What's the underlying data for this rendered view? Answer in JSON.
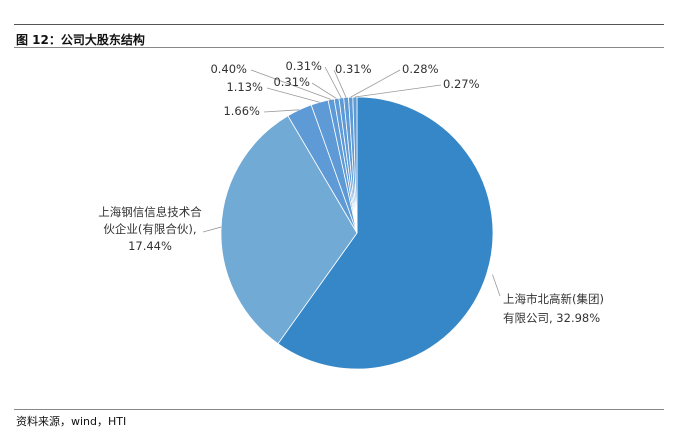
{
  "figure": {
    "title": "图 12：公司大股东结构",
    "source": "资料来源，wind，HTI"
  },
  "chart_data": {
    "type": "pie",
    "title": "",
    "slices": [
      {
        "label": "上海市北高新(集团)有限公司",
        "value": 32.98,
        "label_text": "32.98%",
        "color": "#3587c7"
      },
      {
        "label": "上海钢信信息技术合伙企业(有限合伙)",
        "value": 17.44,
        "label_text": "17.44%",
        "color": "#72aad6"
      },
      {
        "label": "",
        "value": 1.66,
        "label_text": "1.66%",
        "color": "#5d9ad6"
      },
      {
        "label": "",
        "value": 1.13,
        "label_text": "1.13%",
        "color": "#5d9ad6"
      },
      {
        "label": "",
        "value": 0.4,
        "label_text": "0.40%",
        "color": "#5d9ad6"
      },
      {
        "label": "",
        "value": 0.31,
        "label_text": "0.31%",
        "color": "#5d9ad6"
      },
      {
        "label": "",
        "value": 0.31,
        "label_text": "0.31%",
        "color": "#5d9ad6"
      },
      {
        "label": "",
        "value": 0.31,
        "label_text": "0.31%",
        "color": "#5d9ad6"
      },
      {
        "label": "",
        "value": 0.28,
        "label_text": "0.28%",
        "color": "#5d9ad6"
      },
      {
        "label": "",
        "value": 0.27,
        "label_text": "0.27%",
        "color": "#5d9ad6"
      }
    ],
    "callouts": {
      "big1_line1": "上海市北高新(集团)",
      "big1_line2": "有限公司, 32.98%",
      "big2_line1": "上海钢信信息技术合",
      "big2_line2": "伙企业(有限合伙),",
      "big2_line3": "17.44%"
    },
    "legend": "none"
  }
}
